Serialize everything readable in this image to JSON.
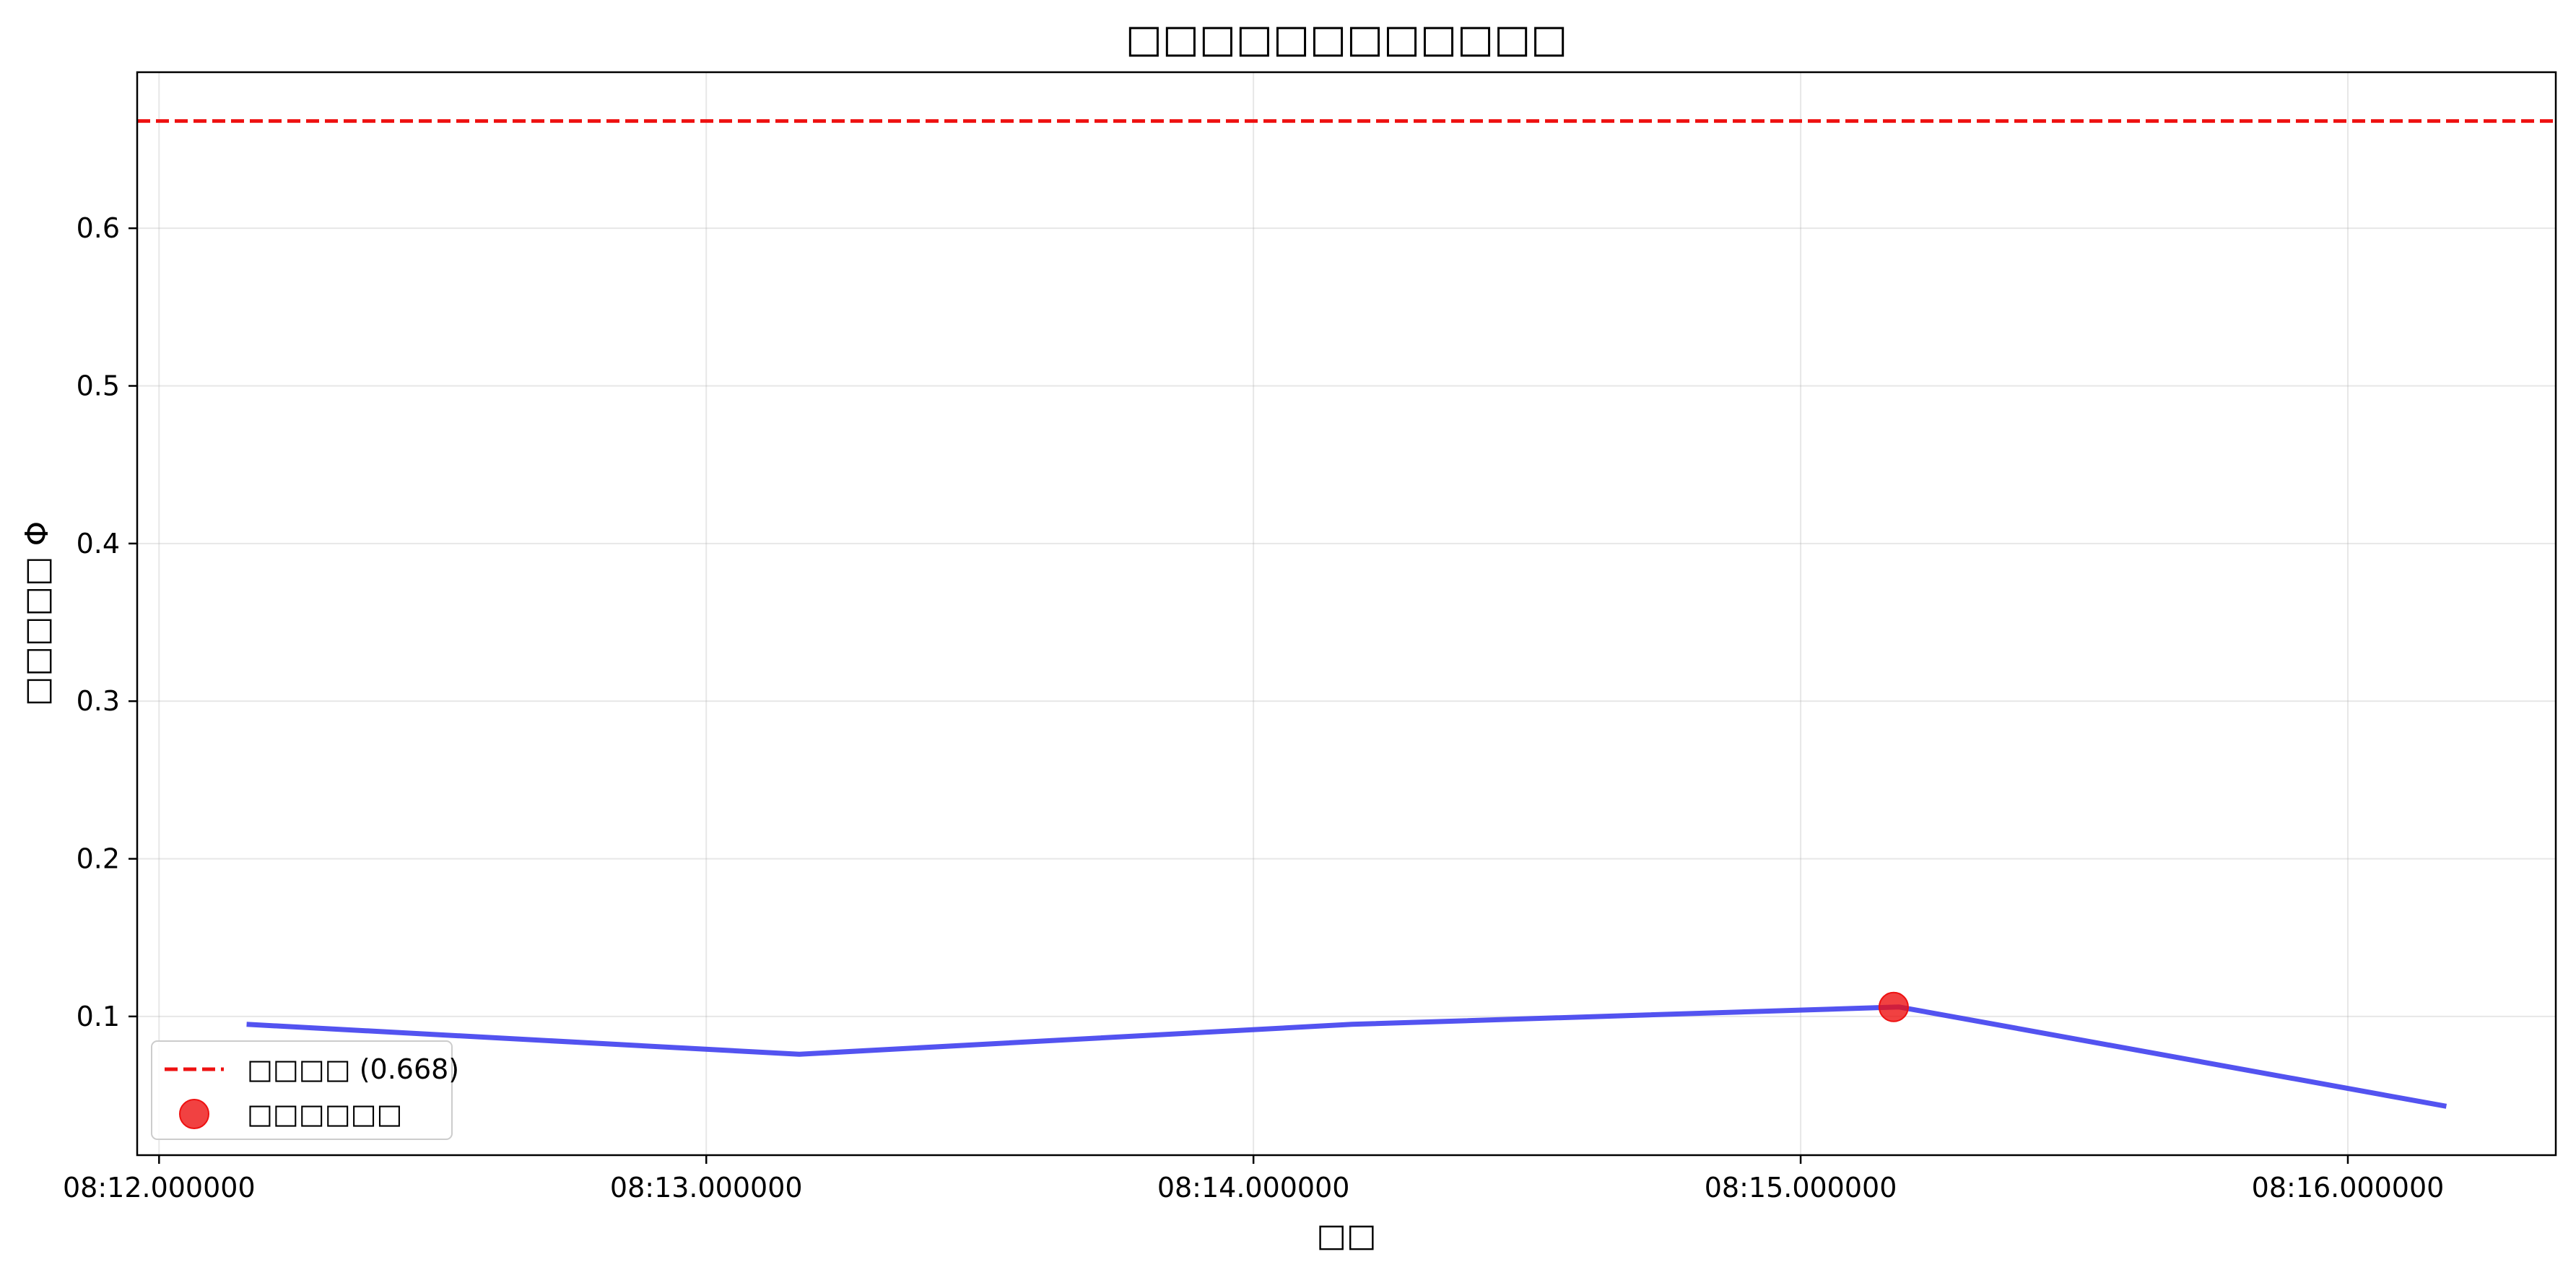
{
  "chart_data": {
    "type": "line",
    "title": "□□□□□□□□□□□□",
    "xlabel": "□□",
    "ylabel": "□□□□□ Φ",
    "x_ticks": [
      "08:12.000000",
      "08:13.000000",
      "08:14.000000",
      "08:15.000000",
      "08:16.000000"
    ],
    "y_ticks": [
      "0.1",
      "0.2",
      "0.3",
      "0.4",
      "0.5",
      "0.6"
    ],
    "x_tick_values": [
      0,
      1,
      2,
      3,
      4
    ],
    "y_tick_values": [
      0.1,
      0.2,
      0.3,
      0.4,
      0.5,
      0.6
    ],
    "xlim": [
      -0.04,
      4.38
    ],
    "ylim": [
      0.012,
      0.699
    ],
    "grid": true,
    "series": [
      {
        "name": "",
        "color": "#4040ee",
        "x": [
          0.16,
          1.17,
          2.18,
          3.18,
          4.18
        ],
        "y": [
          0.095,
          0.076,
          0.095,
          0.106,
          0.043
        ]
      }
    ],
    "threshold": {
      "label": "□□□□ (0.668)",
      "value": 0.668,
      "color": "#ee1111"
    },
    "markers": {
      "label": "□□□□□□",
      "color": "#ee1111",
      "points": [
        {
          "x": 3.17,
          "y": 0.106
        }
      ]
    },
    "legend_position": "lower-left"
  }
}
